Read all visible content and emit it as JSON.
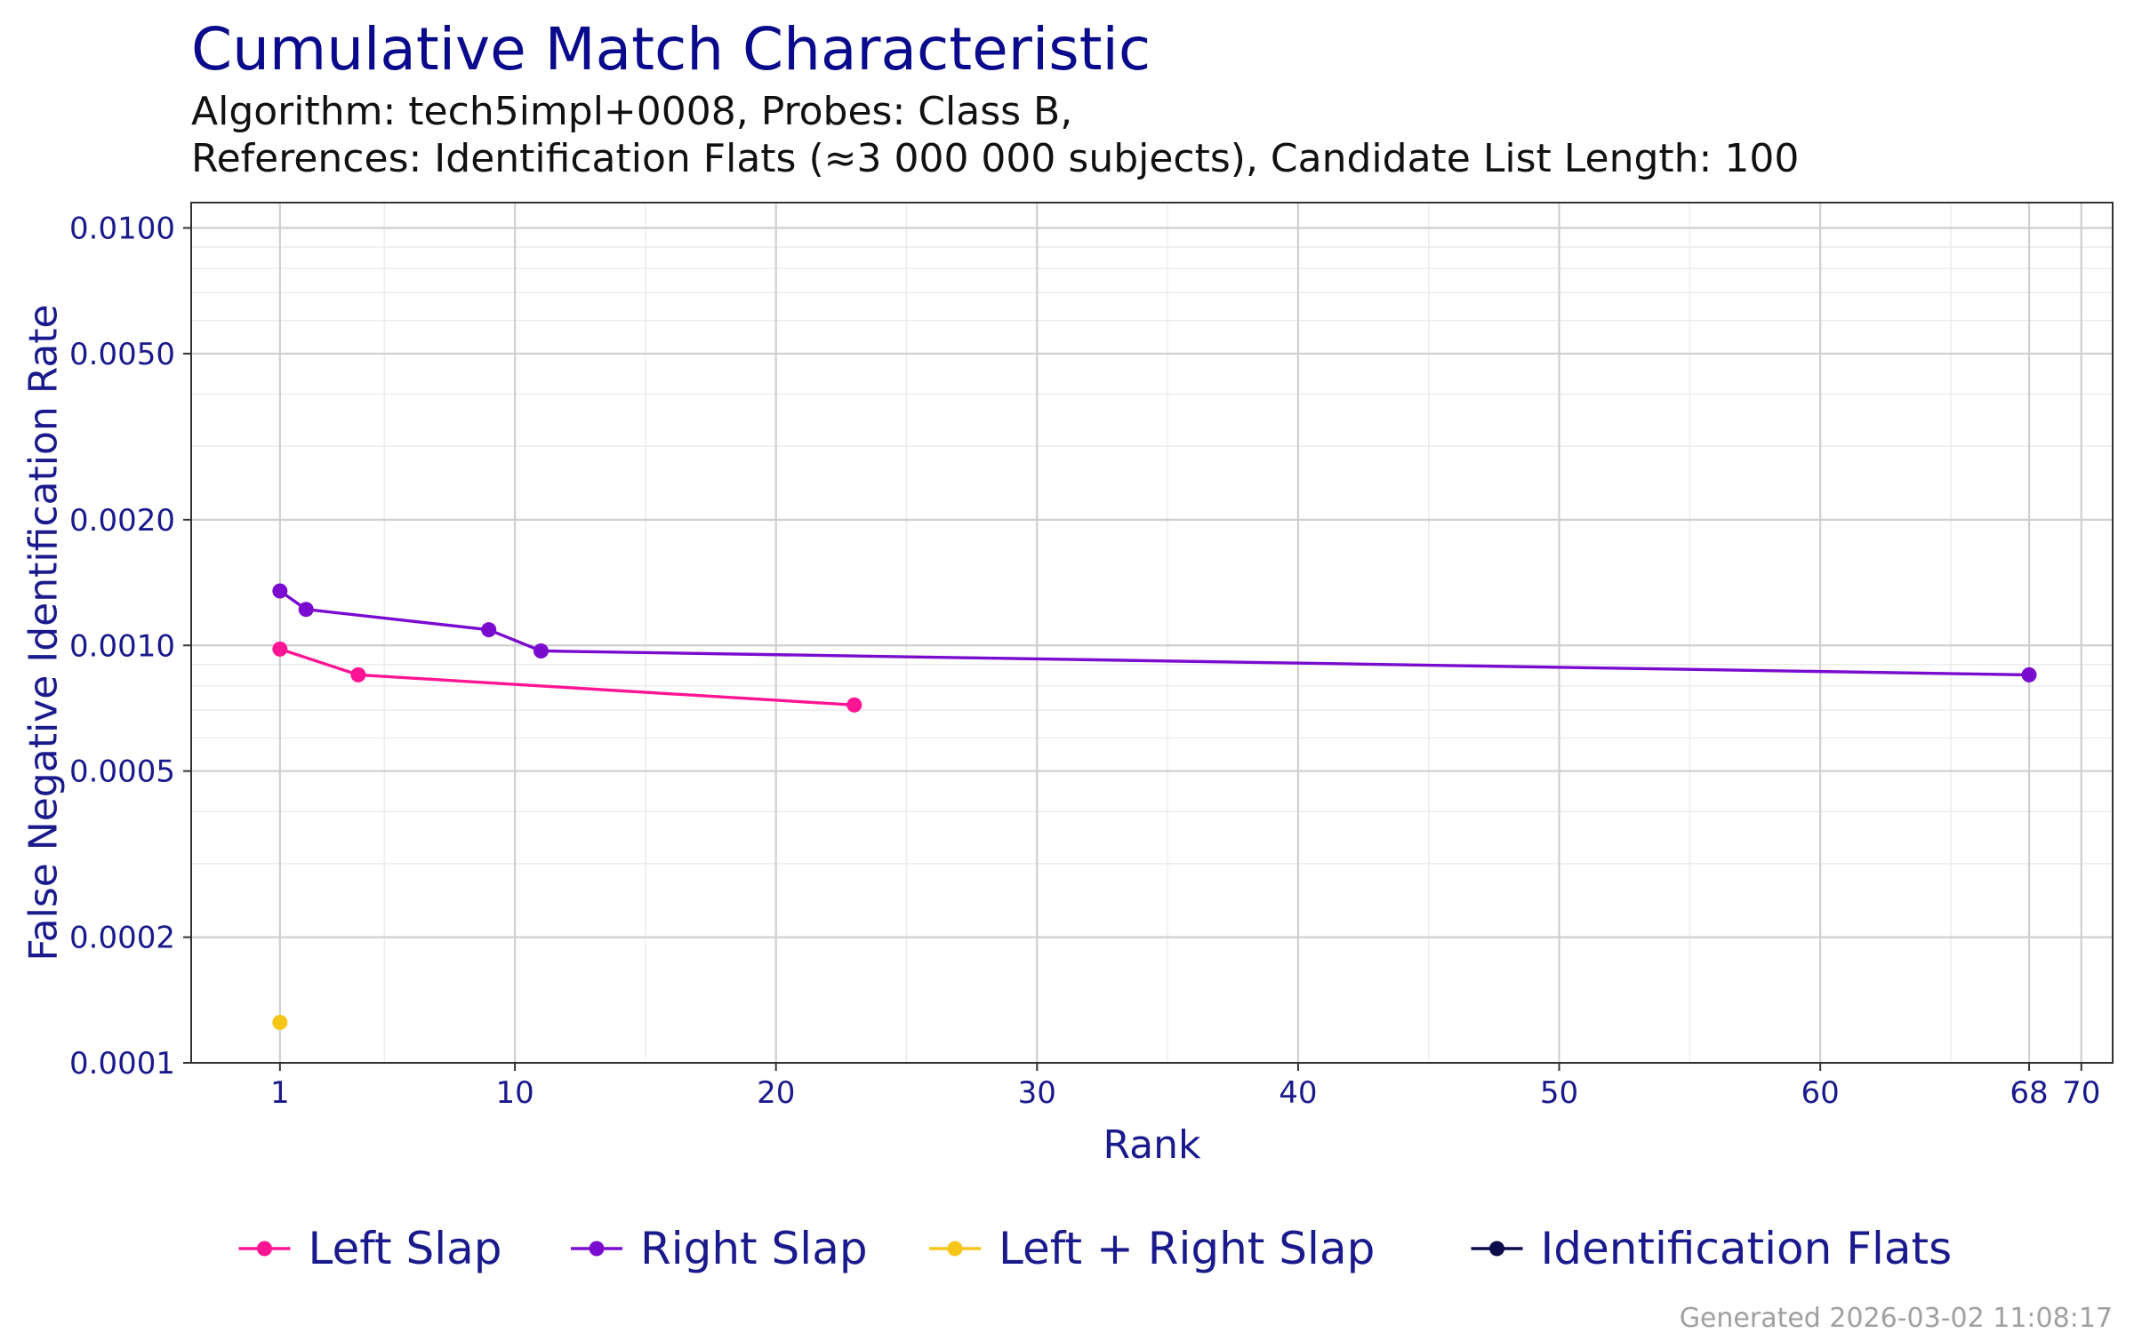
{
  "title": "Cumulative Match Characteristic",
  "subtitle_line1": "Algorithm: tech5impl+0008, Probes: Class B,",
  "subtitle_line2": "References: Identification Flats (≈3 000 000 subjects), Candidate List Length: 100",
  "footer": "Generated 2026-03-02 11:08:17",
  "chart_data": {
    "type": "line",
    "xlabel": "Rank",
    "ylabel": "False Negative Identification Rate",
    "x_scale": "linear",
    "y_scale": "log10",
    "xlim": [
      -2.4,
      71.2
    ],
    "ylim": [
      0.0001,
      0.0115
    ],
    "x_ticks": [
      1,
      10,
      20,
      30,
      40,
      50,
      60,
      68,
      70
    ],
    "x_tick_labels": [
      "1",
      "10",
      "20",
      "30",
      "40",
      "50",
      "60",
      "68",
      "70"
    ],
    "x_minor_ticks": [
      5,
      15,
      25,
      35,
      45,
      55,
      65
    ],
    "y_ticks": [
      0.0001,
      0.0002,
      0.0005,
      0.001,
      0.002,
      0.005,
      0.01
    ],
    "y_tick_labels": [
      "0.0001",
      "0.0002",
      "0.0005",
      "0.0010",
      "0.0020",
      "0.0050",
      "0.0100"
    ],
    "y_minor_ticks": [
      0.0003,
      0.0004,
      0.0006,
      0.0007,
      0.0008,
      0.0009,
      0.003,
      0.004,
      0.006,
      0.007,
      0.008,
      0.009
    ],
    "grid": true,
    "legend_position": "bottom",
    "series": [
      {
        "name": "Left Slap",
        "color": "#ff1493",
        "x": [
          1,
          4,
          23
        ],
        "y": [
          0.00098,
          0.00085,
          0.00072
        ]
      },
      {
        "name": "Right Slap",
        "color": "#7a0ccf",
        "x": [
          1,
          2,
          9,
          11,
          68
        ],
        "y": [
          0.00135,
          0.00122,
          0.00109,
          0.00097,
          0.00085
        ]
      },
      {
        "name": "Left + Right Slap",
        "color": "#f5c518",
        "x": [
          1
        ],
        "y": [
          0.000125
        ]
      },
      {
        "name": "Identification Flats",
        "color": "#0c0c4a",
        "x": [],
        "y": []
      }
    ]
  }
}
